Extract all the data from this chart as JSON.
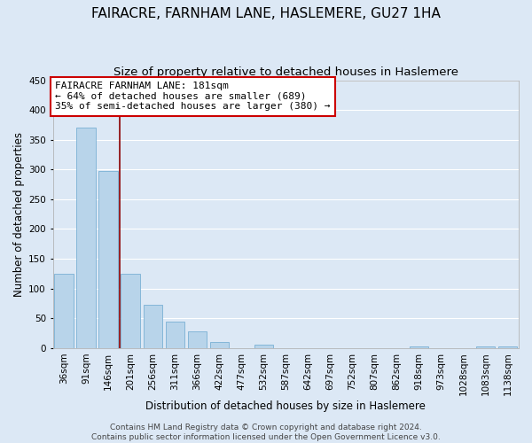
{
  "title": "FAIRACRE, FARNHAM LANE, HASLEMERE, GU27 1HA",
  "subtitle": "Size of property relative to detached houses in Haslemere",
  "xlabel": "Distribution of detached houses by size in Haslemere",
  "ylabel": "Number of detached properties",
  "footer_lines": [
    "Contains HM Land Registry data © Crown copyright and database right 2024.",
    "Contains public sector information licensed under the Open Government Licence v3.0."
  ],
  "bin_labels": [
    "36sqm",
    "91sqm",
    "146sqm",
    "201sqm",
    "256sqm",
    "311sqm",
    "366sqm",
    "422sqm",
    "477sqm",
    "532sqm",
    "587sqm",
    "642sqm",
    "697sqm",
    "752sqm",
    "807sqm",
    "862sqm",
    "918sqm",
    "973sqm",
    "1028sqm",
    "1083sqm",
    "1138sqm"
  ],
  "bar_heights": [
    125,
    370,
    298,
    125,
    72,
    44,
    28,
    10,
    0,
    5,
    0,
    0,
    0,
    0,
    0,
    0,
    2,
    0,
    0,
    2,
    2
  ],
  "bar_color": "#b8d4ea",
  "bar_edge_color": "#7ab0d4",
  "vline_color": "#8b0000",
  "annotation_box_color": "#cc0000",
  "annotation_text_line1": "FAIRACRE FARNHAM LANE: 181sqm",
  "annotation_text_line2": "← 64% of detached houses are smaller (689)",
  "annotation_text_line3": "35% of semi-detached houses are larger (380) →",
  "ylim": [
    0,
    450
  ],
  "yticks": [
    0,
    50,
    100,
    150,
    200,
    250,
    300,
    350,
    400,
    450
  ],
  "bg_color": "#dce8f5",
  "grid_color": "white",
  "title_fontsize": 11,
  "subtitle_fontsize": 9.5,
  "axis_label_fontsize": 8.5,
  "tick_fontsize": 7.5,
  "annotation_fontsize": 8,
  "footer_fontsize": 6.5
}
